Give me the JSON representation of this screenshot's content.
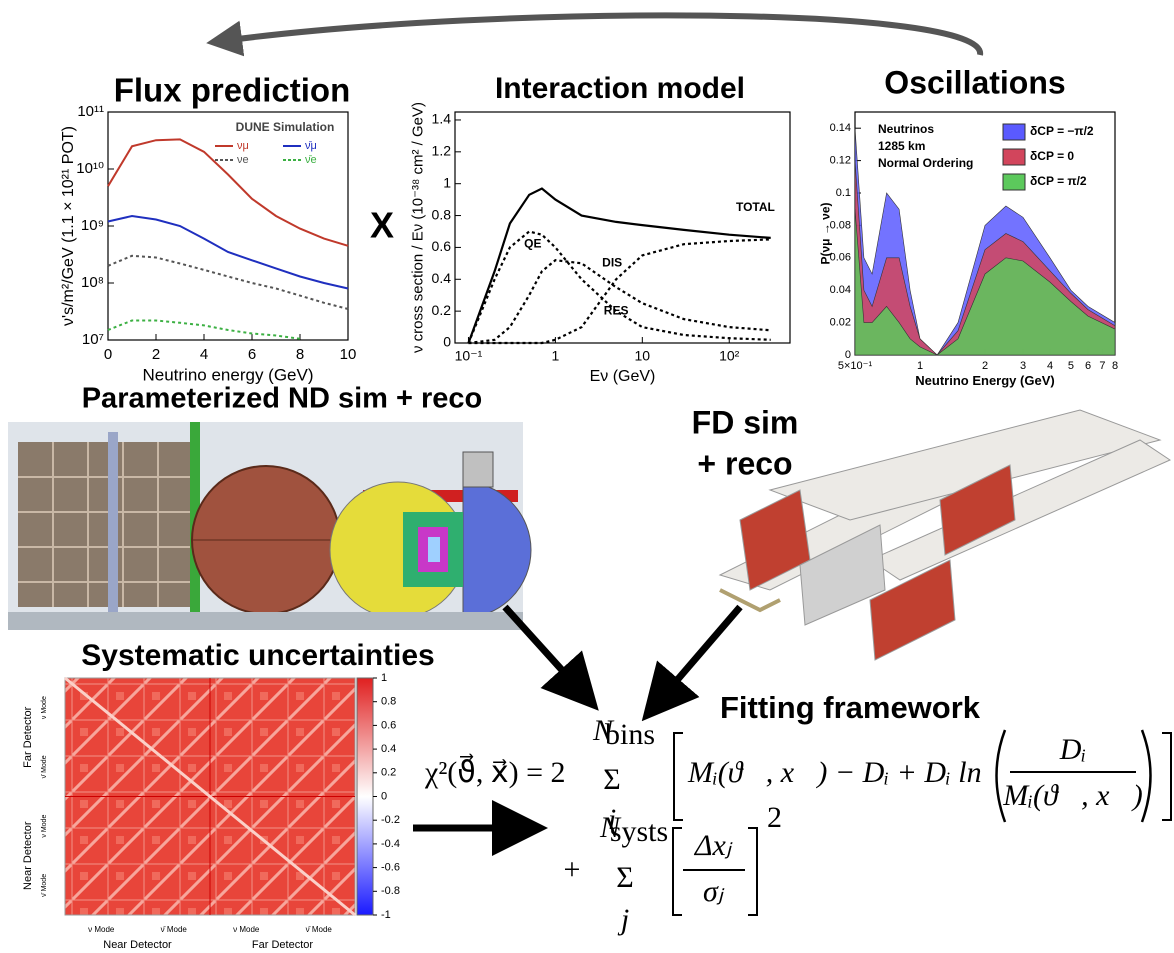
{
  "titles": {
    "flux": "Flux prediction",
    "interaction": "Interaction model",
    "oscillations": "Oscillations",
    "times": "X",
    "nd": "Parameterized ND sim + reco",
    "fd_1": "FD sim",
    "fd_2": "+ reco",
    "systematics": "Systematic uncertainties",
    "fitting": "Fitting framework"
  },
  "flux": {
    "label": "DUNE Simulation",
    "x_label": "Neutrino energy (GeV)",
    "y_label": "ν's/m²/GeV (1.1 × 10²¹ POT)",
    "log_y": true,
    "xlim": [
      0,
      10
    ],
    "xticks": [
      0,
      2,
      4,
      6,
      8,
      10
    ],
    "ylim": [
      10000000,
      100000000000
    ],
    "yticks": [
      {
        "value": 10000000,
        "label": "10⁷"
      },
      {
        "value": 100000000,
        "label": "10⁸"
      },
      {
        "value": 1000000000,
        "label": "10⁹"
      },
      {
        "value": 10000000000,
        "label": "10¹⁰"
      },
      {
        "value": 100000000000,
        "label": "10¹¹"
      }
    ],
    "x": [
      0,
      1,
      2,
      3,
      4,
      5,
      6,
      7,
      8,
      9,
      10
    ],
    "series": [
      {
        "name": "νμ",
        "color": "#c0392b",
        "dash": false,
        "values": [
          5000000000,
          25000000000,
          32000000000,
          33000000000,
          20000000000,
          8000000000,
          3000000000,
          1500000000,
          900000000,
          600000000,
          450000000
        ]
      },
      {
        "name": "ν̄μ",
        "color": "#1f2fbf",
        "dash": false,
        "values": [
          1200000000,
          1500000000,
          1300000000,
          1000000000,
          600000000,
          350000000,
          250000000,
          180000000,
          130000000,
          100000000,
          80000000
        ]
      },
      {
        "name": "νe",
        "color": "#555555",
        "dash": true,
        "values": [
          200000000,
          300000000,
          280000000,
          220000000,
          170000000,
          130000000,
          100000000,
          80000000,
          60000000,
          45000000,
          35000000
        ]
      },
      {
        "name": "ν̄e",
        "color": "#3cb043",
        "dash": true,
        "values": [
          15000000,
          22000000,
          22000000,
          20000000,
          18000000,
          15000000,
          13000000,
          12000000,
          10500000,
          null,
          null
        ]
      }
    ]
  },
  "interaction": {
    "x_label": "Eν (GeV)",
    "y_label": "ν cross section / Eν (10⁻³⁸ cm² / GeV)",
    "log_x": true,
    "xlim": [
      0.07,
      500
    ],
    "xticks": [
      {
        "value": 0.1,
        "label": "10⁻¹"
      },
      1,
      10,
      {
        "value": 100,
        "label": "10²"
      }
    ],
    "ylim": [
      0,
      1.45
    ],
    "yticks": [
      0,
      0.2,
      0.4,
      0.6,
      0.8,
      1,
      1.2,
      1.4
    ],
    "x": [
      0.1,
      0.2,
      0.3,
      0.5,
      0.7,
      1,
      2,
      5,
      10,
      30,
      100,
      300
    ],
    "series": [
      {
        "name": "TOTAL",
        "dash": false,
        "values": [
          0,
          0.45,
          0.75,
          0.93,
          0.97,
          0.9,
          0.8,
          0.76,
          0.74,
          0.71,
          0.68,
          0.66
        ]
      },
      {
        "name": "QE",
        "dash": true,
        "values": [
          0,
          0.4,
          0.6,
          0.7,
          0.68,
          0.6,
          0.4,
          0.2,
          0.1,
          0.05,
          0.03,
          0.02
        ]
      },
      {
        "name": "RES",
        "dash": true,
        "values": [
          0,
          0.02,
          0.1,
          0.3,
          0.45,
          0.52,
          0.5,
          0.35,
          0.25,
          0.15,
          0.1,
          0.08
        ]
      },
      {
        "name": "DIS",
        "dash": true,
        "values": [
          0,
          0,
          0,
          0,
          0,
          0.02,
          0.1,
          0.4,
          0.55,
          0.62,
          0.64,
          0.65
        ]
      }
    ]
  },
  "oscillations": {
    "x_label": "Neutrino Energy (GeV)",
    "y_label": "P(νμ → νe)",
    "notes": [
      "Neutrinos",
      "1285 km",
      "Normal Ordering"
    ],
    "log_x": true,
    "xlim": [
      0.5,
      8
    ],
    "xticks": [
      {
        "value": 0.5,
        "label": "5×10⁻¹"
      },
      1,
      2,
      3,
      4,
      5,
      6,
      7,
      8
    ],
    "ylim": [
      0,
      0.15
    ],
    "yticks": [
      0,
      0.02,
      0.04,
      0.06,
      0.08,
      0.1,
      0.12,
      0.14
    ],
    "x": [
      0.5,
      0.55,
      0.6,
      0.7,
      0.8,
      0.9,
      1,
      1.2,
      1.5,
      2,
      2.5,
      3,
      4,
      5,
      6,
      8
    ],
    "series": [
      {
        "name": "δCP = −π/2",
        "color": "#5a5aff",
        "values": [
          0.14,
          0.06,
          0.05,
          0.1,
          0.09,
          0.04,
          0.01,
          0,
          0.02,
          0.08,
          0.092,
          0.085,
          0.06,
          0.04,
          0.03,
          0.02
        ]
      },
      {
        "name": "δCP = 0",
        "color": "#d2455c",
        "values": [
          0.12,
          0.04,
          0.03,
          0.06,
          0.06,
          0.03,
          0.01,
          0,
          0.015,
          0.065,
          0.075,
          0.07,
          0.052,
          0.038,
          0.028,
          0.018
        ]
      },
      {
        "name": "δCP = π/2",
        "color": "#5cc95c",
        "values": [
          0.09,
          0.02,
          0.02,
          0.03,
          0.02,
          0.01,
          0.005,
          0,
          0.01,
          0.05,
          0.06,
          0.058,
          0.045,
          0.033,
          0.024,
          0.016
        ]
      }
    ]
  },
  "systematics": {
    "clim": [
      -1,
      1
    ],
    "cticks": [
      1,
      0.8,
      0.6,
      0.4,
      0.2,
      0,
      -0.2,
      -0.4,
      -0.6,
      -0.8,
      -1
    ],
    "y_groups": [
      "Far Detector",
      "Near Detector"
    ],
    "x_groups": [
      "Near Detector",
      "Far Detector"
    ],
    "modes": [
      "ν Mode",
      "ν̄ Mode"
    ]
  },
  "formula": {
    "lhs": "χ²(ϑ⃗, x⃗) = 2",
    "sum": "Σ",
    "n_bins": "N",
    "bins": "bins",
    "i": "i",
    "body": "Mᵢ(ϑ⃗, x⃗) − Dᵢ + Dᵢ ln",
    "num1": "Dᵢ",
    "den1": "Mᵢ(ϑ⃗, x⃗)",
    "plus": "+",
    "n_systs": "N",
    "systs": "systs",
    "j": "j",
    "num2": "Δxⱼ",
    "den2": "σⱼ",
    "power": "2"
  }
}
